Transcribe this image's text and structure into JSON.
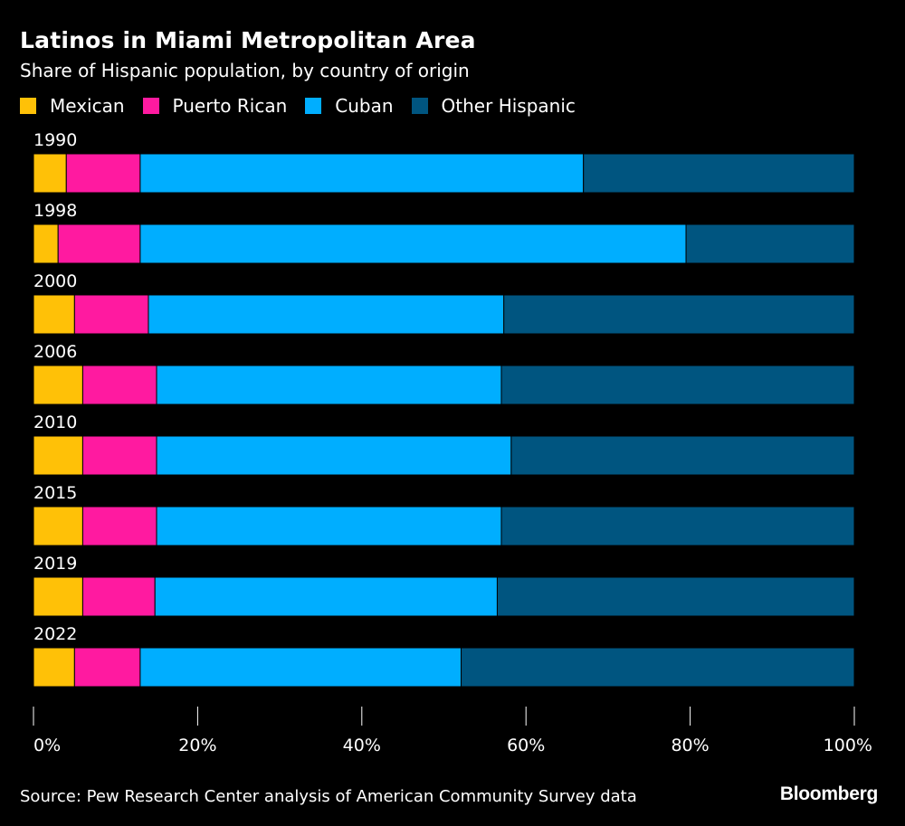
{
  "chart_data": {
    "type": "bar",
    "orientation": "horizontal",
    "stacked": true,
    "title": "Latinos in Miami Metropolitan Area",
    "subtitle": "Share of Hispanic population, by country of origin",
    "categories": [
      "1990",
      "1998",
      "2000",
      "2006",
      "2010",
      "2015",
      "2019",
      "2022"
    ],
    "series": [
      {
        "name": "Mexican",
        "color": "#ffc107",
        "values": [
          4,
          3,
          5,
          6,
          6,
          6,
          6,
          5
        ]
      },
      {
        "name": "Puerto Rican",
        "color": "#ff1aa0",
        "values": [
          9,
          10,
          9,
          9,
          9,
          9,
          8.8,
          8
        ]
      },
      {
        "name": "Cuban",
        "color": "#00aeff",
        "values": [
          54,
          66.5,
          43.3,
          42,
          43.2,
          42,
          41.7,
          39.1
        ]
      },
      {
        "name": "Other Hispanic",
        "color": "#005580",
        "values": [
          33,
          20.5,
          42.7,
          43,
          41.8,
          43,
          43.5,
          47.9
        ]
      }
    ],
    "xlim": [
      0,
      100
    ],
    "xticks": [
      "0%",
      "20%",
      "40%",
      "60%",
      "80%",
      "100%"
    ],
    "legend_position": "top-left",
    "grid": false
  },
  "footer": {
    "source": "Source: Pew Research Center analysis of American Community Survey data",
    "brand": "Bloomberg"
  }
}
